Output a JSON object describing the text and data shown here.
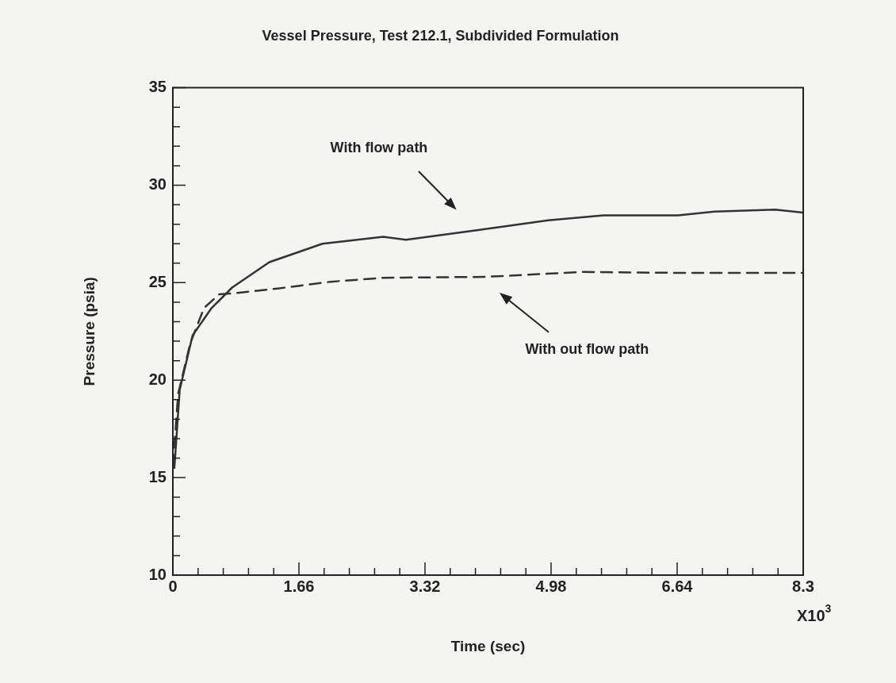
{
  "chart_data": {
    "type": "line",
    "title": "Vessel Pressure, Test 212.1, Subdivided Formulation",
    "xlabel": "Time (sec)",
    "ylabel": "Pressure (psia)",
    "xlim": [
      0,
      8.3
    ],
    "ylim": [
      10,
      35
    ],
    "xticks": [
      0,
      {
        "value": 0.332,
        "label": null
      },
      {
        "value": 0.664,
        "label": null
      },
      {
        "value": 0.996,
        "label": null
      },
      {
        "value": 1.328,
        "label": null
      },
      1.66,
      {
        "value": 1.992,
        "label": null
      },
      {
        "value": 2.324,
        "label": null
      },
      {
        "value": 2.656,
        "label": null
      },
      {
        "value": 2.988,
        "label": null
      },
      3.32,
      {
        "value": 3.652,
        "label": null
      },
      {
        "value": 3.984,
        "label": null
      },
      {
        "value": 4.316,
        "label": null
      },
      {
        "value": 4.648,
        "label": null
      },
      4.98,
      {
        "value": 5.312,
        "label": null
      },
      {
        "value": 5.644,
        "label": null
      },
      {
        "value": 5.976,
        "label": null
      },
      {
        "value": 6.308,
        "label": null
      },
      6.64,
      {
        "value": 6.972,
        "label": null
      },
      {
        "value": 7.304,
        "label": null
      },
      {
        "value": 7.636,
        "label": null
      },
      {
        "value": 7.968,
        "label": null
      },
      8.3
    ],
    "yticks": [
      10,
      {
        "value": 11,
        "label": null
      },
      {
        "value": 12,
        "label": null
      },
      {
        "value": 13,
        "label": null
      },
      {
        "value": 14,
        "label": null
      },
      15,
      {
        "value": 16,
        "label": null
      },
      {
        "value": 17,
        "label": null
      },
      {
        "value": 18,
        "label": null
      },
      {
        "value": 19,
        "label": null
      },
      20,
      {
        "value": 21,
        "label": null
      },
      {
        "value": 22,
        "label": null
      },
      {
        "value": 23,
        "label": null
      },
      {
        "value": 24,
        "label": null
      },
      25,
      {
        "value": 26,
        "label": null
      },
      {
        "value": 27,
        "label": null
      },
      {
        "value": 28,
        "label": null
      },
      {
        "value": 29,
        "label": null
      },
      30,
      {
        "value": 31,
        "label": null
      },
      {
        "value": 32,
        "label": null
      },
      {
        "value": 33,
        "label": null
      },
      {
        "value": 34,
        "label": null
      },
      35
    ],
    "grid": false,
    "legend": false,
    "marker": "none",
    "series": [
      {
        "color": "#333333",
        "line_style": "solid",
        "x": [
          0.02,
          0.09,
          0.26,
          0.51,
          0.78,
          1.27,
          1.97,
          2.77,
          3.07,
          4.02,
          4.94,
          5.67,
          6.65,
          7.13,
          7.93,
          8.3
        ],
        "values": [
          15.5,
          19.5,
          22.3,
          23.7,
          24.75,
          26.05,
          27.0,
          27.35,
          27.2,
          27.7,
          28.2,
          28.45,
          28.45,
          28.65,
          28.75,
          28.6
        ]
      },
      {
        "color": "#333333",
        "line_style": "dashed",
        "x": [
          0.0,
          0.07,
          0.23,
          0.41,
          0.61,
          0.78,
          1.38,
          2.08,
          2.77,
          4.12,
          5.38,
          6.76,
          8.3
        ],
        "values": [
          15.6,
          19.3,
          21.9,
          23.7,
          24.4,
          24.45,
          24.7,
          25.05,
          25.25,
          25.3,
          25.55,
          25.5,
          25.5
        ]
      }
    ],
    "annotations": [
      "With flow path",
      "With out flow path",
      "X10$^{3}$"
    ]
  }
}
